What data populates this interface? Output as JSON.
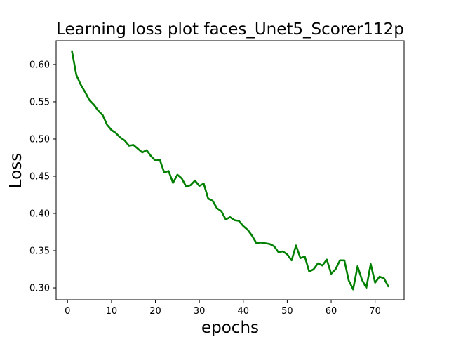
{
  "chart_data": {
    "type": "line",
    "title": "Learning loss plot faces_Unet5_Scorer112p",
    "xlabel": "epochs",
    "ylabel": "Loss",
    "xlim": [
      -2.6,
      76.6
    ],
    "ylim": [
      0.284,
      0.632
    ],
    "x_ticks": [
      0,
      10,
      20,
      30,
      40,
      50,
      60,
      70
    ],
    "y_ticks": [
      0.3,
      0.35,
      0.4,
      0.45,
      0.5,
      0.55,
      0.6
    ],
    "y_tick_labels": [
      "0.30",
      "0.35",
      "0.40",
      "0.45",
      "0.50",
      "0.55",
      "0.60"
    ],
    "grid": false,
    "series": [
      {
        "name": "loss",
        "color": "#008000",
        "x": [
          1,
          2,
          3,
          4,
          5,
          6,
          7,
          8,
          9,
          10,
          11,
          12,
          13,
          14,
          15,
          16,
          17,
          18,
          19,
          20,
          21,
          22,
          23,
          24,
          25,
          26,
          27,
          28,
          29,
          30,
          31,
          32,
          33,
          34,
          35,
          36,
          37,
          38,
          39,
          40,
          41,
          42,
          43,
          44,
          45,
          46,
          47,
          48,
          49,
          50,
          51,
          52,
          53,
          54,
          55,
          56,
          57,
          58,
          59,
          60,
          61,
          62,
          63,
          64,
          65,
          66,
          67,
          68,
          69,
          70,
          71,
          72,
          73
        ],
        "values": [
          0.618,
          0.586,
          0.573,
          0.563,
          0.552,
          0.546,
          0.538,
          0.532,
          0.519,
          0.512,
          0.508,
          0.502,
          0.498,
          0.491,
          0.492,
          0.487,
          0.482,
          0.485,
          0.477,
          0.471,
          0.472,
          0.455,
          0.457,
          0.441,
          0.452,
          0.447,
          0.436,
          0.438,
          0.444,
          0.437,
          0.44,
          0.42,
          0.417,
          0.407,
          0.403,
          0.392,
          0.395,
          0.391,
          0.39,
          0.383,
          0.378,
          0.37,
          0.36,
          0.361,
          0.36,
          0.359,
          0.356,
          0.348,
          0.349,
          0.345,
          0.337,
          0.357,
          0.34,
          0.342,
          0.322,
          0.325,
          0.333,
          0.33,
          0.338,
          0.319,
          0.325,
          0.337,
          0.337,
          0.31,
          0.298,
          0.329,
          0.311,
          0.3,
          0.332,
          0.307,
          0.315,
          0.313,
          0.302
        ]
      }
    ]
  }
}
